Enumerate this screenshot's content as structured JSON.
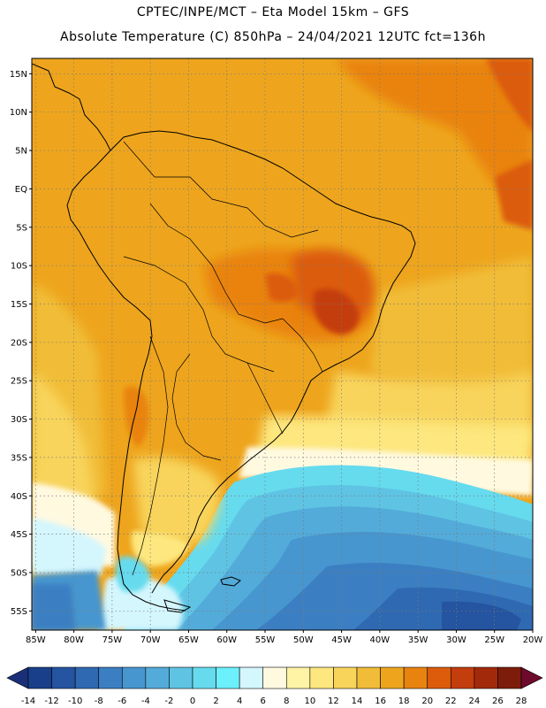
{
  "header": {
    "line1": "CPTEC/INPE/MCT –  Eta Model 15km – GFS",
    "line2": "Absolute Temperature (C) 850hPa – 24/04/2021 12UTC fct=136h"
  },
  "map": {
    "lat_labels": [
      "15N",
      "10N",
      "5N",
      "EQ",
      "5S",
      "10S",
      "15S",
      "20S",
      "25S",
      "30S",
      "35S",
      "40S",
      "45S",
      "50S",
      "55S"
    ],
    "lat_values": [
      15,
      10,
      5,
      0,
      -5,
      -10,
      -15,
      -20,
      -25,
      -30,
      -35,
      -40,
      -45,
      -50,
      -55
    ],
    "lon_labels": [
      "85W",
      "80W",
      "75W",
      "70W",
      "65W",
      "60W",
      "55W",
      "50W",
      "45W",
      "40W",
      "35W",
      "30W",
      "25W",
      "20W"
    ],
    "lon_values": [
      -85,
      -80,
      -75,
      -70,
      -65,
      -60,
      -55,
      -50,
      -45,
      -40,
      -35,
      -30,
      -25,
      -20
    ],
    "lon_range": [
      -85.5,
      -20
    ],
    "lat_range": [
      -57.5,
      17
    ]
  },
  "colorbar": {
    "labels": [
      "-14",
      "-12",
      "-10",
      "-8",
      "-6",
      "-4",
      "-2",
      "0",
      "2",
      "4",
      "6",
      "8",
      "10",
      "12",
      "14",
      "16",
      "18",
      "20",
      "22",
      "24",
      "26",
      "28"
    ],
    "colors": [
      "#1a3f8a",
      "#2554a0",
      "#2f69b2",
      "#3b7fc2",
      "#4796cf",
      "#53abd9",
      "#5fc4e4",
      "#66dbee",
      "#6cf0fb",
      "#d4f6fd",
      "#fff9e0",
      "#fff3a6",
      "#fde77e",
      "#f8d45b",
      "#f1bd38",
      "#eea51d",
      "#e98310",
      "#dc5c0c",
      "#c43d0c",
      "#a22a0b",
      "#7d1c0b"
    ],
    "low_color": "#1a2f78",
    "high_color": "#6e0a2c"
  }
}
